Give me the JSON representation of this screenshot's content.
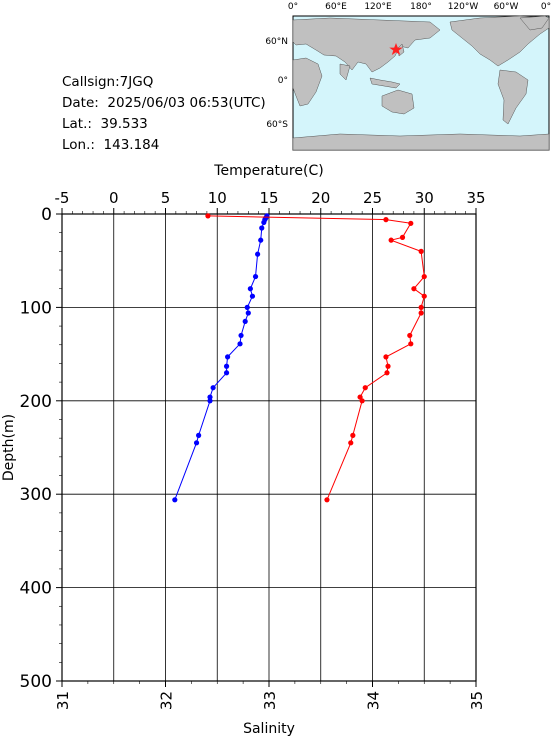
{
  "station": {
    "callsign": "Callsign:7JGQ",
    "date": "Date:  2025/06/03 06:53(UTC)",
    "lat": "Lat.:  39.533",
    "lon": "Lon.:  143.184"
  },
  "map": {
    "top_labels": [
      "0°",
      "60°E",
      "120°E",
      "180°",
      "120°W",
      "60°W",
      "0°"
    ],
    "left_labels": [
      "60°N",
      "0°",
      "60°S"
    ],
    "ocean_color": "#d4f5fb",
    "land_color": "#c0c0c0",
    "marker_color": "#ff2020",
    "marker_icon": "star-icon"
  },
  "chart_data": {
    "type": "line",
    "ylabel": "Depth(m)",
    "ylim": [
      500,
      0
    ],
    "y_ticks": [
      0,
      100,
      200,
      300,
      400,
      500
    ],
    "x_top": {
      "label": "Temperature(C)",
      "lim": [
        -5,
        35
      ],
      "ticks": [
        -5,
        0,
        5,
        10,
        15,
        20,
        25,
        30,
        35
      ]
    },
    "x_bottom": {
      "label": "Salinity",
      "lim": [
        31,
        35
      ],
      "ticks": [
        31,
        32,
        33,
        34,
        35
      ]
    },
    "grid": true,
    "series": [
      {
        "color": "#0000ff",
        "axis": "bottom",
        "points": [
          [
            32.98,
            2
          ],
          [
            32.97,
            4
          ],
          [
            32.96,
            6
          ],
          [
            32.95,
            9
          ],
          [
            32.93,
            15
          ],
          [
            32.92,
            28
          ],
          [
            32.89,
            43
          ],
          [
            32.87,
            67
          ],
          [
            32.82,
            80
          ],
          [
            32.84,
            88
          ],
          [
            32.79,
            100
          ],
          [
            32.8,
            106
          ],
          [
            32.77,
            115
          ],
          [
            32.73,
            130
          ],
          [
            32.72,
            139
          ],
          [
            32.6,
            153
          ],
          [
            32.59,
            163
          ],
          [
            32.59,
            170
          ],
          [
            32.46,
            186
          ],
          [
            32.43,
            196
          ],
          [
            32.43,
            200
          ],
          [
            32.32,
            237
          ],
          [
            32.3,
            245
          ],
          [
            32.09,
            306
          ]
        ]
      },
      {
        "color": "#ff0000",
        "axis": "top",
        "points": [
          [
            9.1,
            2
          ],
          [
            26.3,
            6
          ],
          [
            28.7,
            10
          ],
          [
            27.9,
            25
          ],
          [
            26.8,
            28
          ],
          [
            29.7,
            40
          ],
          [
            30,
            67
          ],
          [
            29,
            80
          ],
          [
            30,
            88
          ],
          [
            29.7,
            100
          ],
          [
            29.7,
            106
          ],
          [
            28.6,
            130
          ],
          [
            28.7,
            139
          ],
          [
            26.3,
            153
          ],
          [
            26.5,
            163
          ],
          [
            26.4,
            170
          ],
          [
            24.3,
            186
          ],
          [
            23.8,
            196
          ],
          [
            24,
            200
          ],
          [
            23.1,
            237
          ],
          [
            22.9,
            245
          ],
          [
            20.6,
            306
          ]
        ]
      }
    ]
  }
}
